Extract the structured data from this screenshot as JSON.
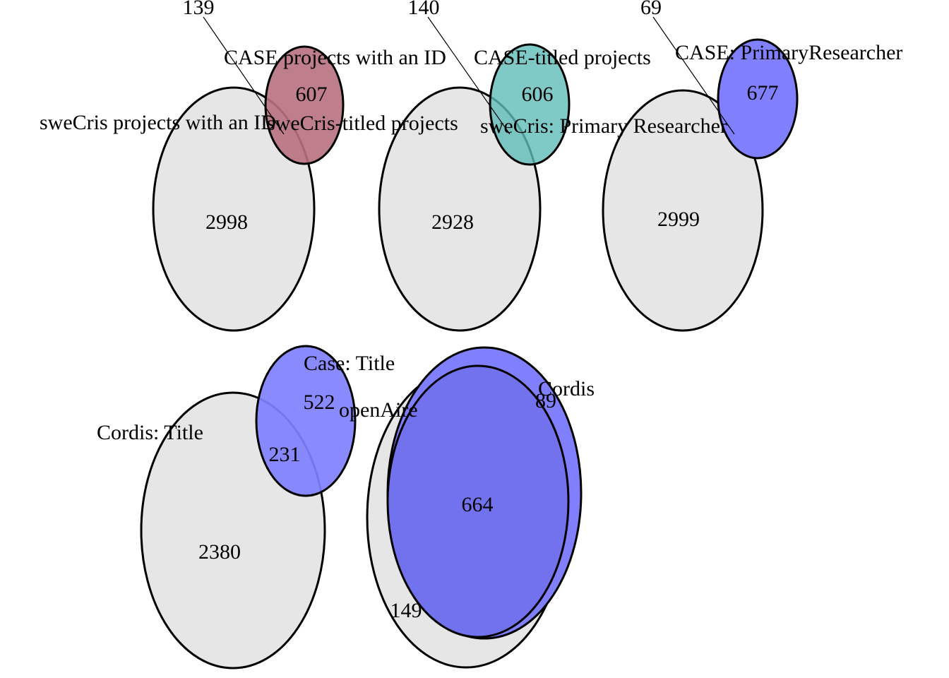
{
  "colors": {
    "grey": "#e6e6e6",
    "maroon": "#b8707e",
    "teal": "#5fbbb8",
    "blue": "#8080ff",
    "blue_overlap": "#6b6bea"
  },
  "diagrams": [
    {
      "sets": [
        {
          "label": "sweCris projects with an ID",
          "only": "2998"
        },
        {
          "label": "CASE projects with an ID",
          "only": "607"
        }
      ],
      "intersection": "139"
    },
    {
      "sets": [
        {
          "label": "sweCris-titled projects",
          "only": "2928"
        },
        {
          "label": "CASE-titled projects",
          "only": "606"
        }
      ],
      "intersection": "140"
    },
    {
      "sets": [
        {
          "label": "sweCris: Primary Researcher",
          "only": "2999"
        },
        {
          "label": "CASE: PrimaryResearcher",
          "only": "677"
        }
      ],
      "intersection": "69"
    },
    {
      "sets": [
        {
          "label": "Cordis: Title",
          "only": "2380"
        },
        {
          "label": "Case: Title",
          "only": "522"
        }
      ],
      "intersection": "231"
    },
    {
      "sets": [
        {
          "label": "openAire",
          "only": "149"
        },
        {
          "label": "Cordis",
          "only": "89"
        }
      ],
      "intersection": "664"
    }
  ]
}
